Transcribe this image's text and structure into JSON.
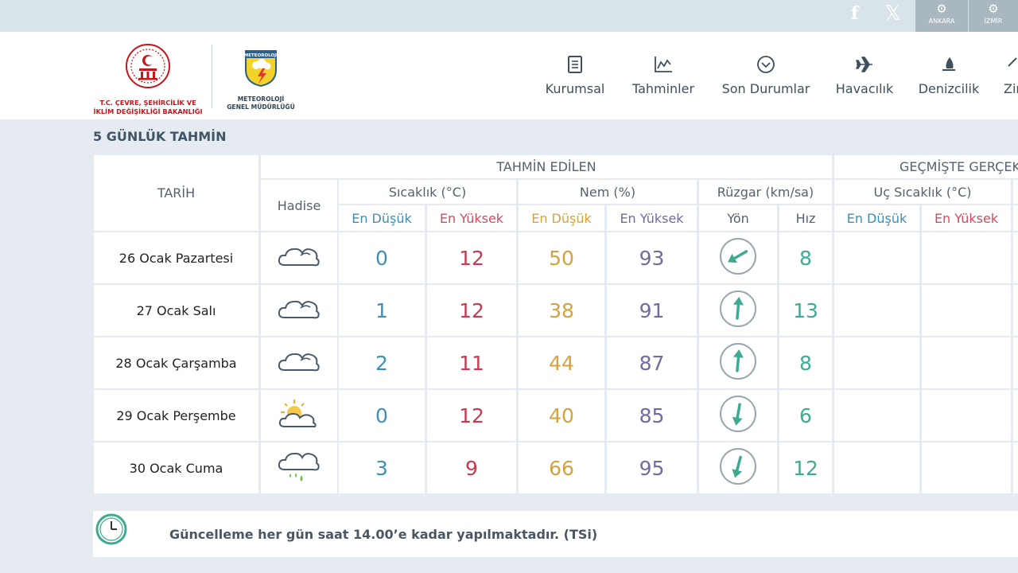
{
  "topbar": {
    "social": {
      "facebook": "f",
      "x": "𝕏"
    },
    "cities": [
      "ANKARA",
      "İZMİR"
    ]
  },
  "header": {
    "ministry": {
      "line1": "T.C. ÇEVRE, ŞEHİRCİLİK VE",
      "line2": "İKLİM DEĞİŞİKLİĞİ BAKANLIĞI"
    },
    "mgm": {
      "logo_text": "METEOROLOJİ",
      "line1": "METEOROLOJİ",
      "line2": "GENEL MÜDÜRLÜĞÜ"
    },
    "nav": [
      "Kurumsal",
      "Tahminler",
      "Son Durumlar",
      "Havacılık",
      "Denizcilik",
      "Zir"
    ]
  },
  "section_title": "5 GÜNLÜK TAHMİN",
  "table": {
    "headers": {
      "date": "TARİH",
      "forecast": "TAHMİN EDİLEN",
      "past": "GEÇMİŞTE GERÇEK",
      "event": "Hadise",
      "temp": "Sıcaklık (°C)",
      "humidity": "Nem (%)",
      "wind": "Rüzgar (km/sa)",
      "extreme_temp": "Uç Sıcaklık (°C)",
      "min": "En Düşük",
      "max": "En Yüksek",
      "direction": "Yön",
      "speed": "Hız"
    },
    "rows": [
      {
        "date": "26 Ocak Pazartesi",
        "icon": "cloudy-icon",
        "t_min": "0",
        "t_max": "12",
        "h_min": "50",
        "h_max": "93",
        "wind_dir_deg": 240,
        "wind_speed": "8"
      },
      {
        "date": "27 Ocak Salı",
        "icon": "cloudy-icon",
        "t_min": "1",
        "t_max": "12",
        "h_min": "38",
        "h_max": "91",
        "wind_dir_deg": 5,
        "wind_speed": "13"
      },
      {
        "date": "28 Ocak Çarşamba",
        "icon": "cloudy-icon",
        "t_min": "2",
        "t_max": "11",
        "h_min": "44",
        "h_max": "87",
        "wind_dir_deg": 5,
        "wind_speed": "8"
      },
      {
        "date": "29 Ocak Perşembe",
        "icon": "partly-cloudy-icon",
        "t_min": "0",
        "t_max": "12",
        "h_min": "40",
        "h_max": "85",
        "wind_dir_deg": 190,
        "wind_speed": "6"
      },
      {
        "date": "30 Ocak Cuma",
        "icon": "rain-icon",
        "t_min": "3",
        "t_max": "9",
        "h_min": "66",
        "h_max": "95",
        "wind_dir_deg": 195,
        "wind_speed": "12"
      }
    ]
  },
  "colors": {
    "accent_teal": "#3faa90",
    "red": "#c93a52",
    "blue": "#3e8fb4",
    "orange": "#d6a23a",
    "purple": "#6f6c9e"
  },
  "footer_note": "Güncelleme her gün saat 14.00’e kadar yapılmaktadır. (TSi)"
}
